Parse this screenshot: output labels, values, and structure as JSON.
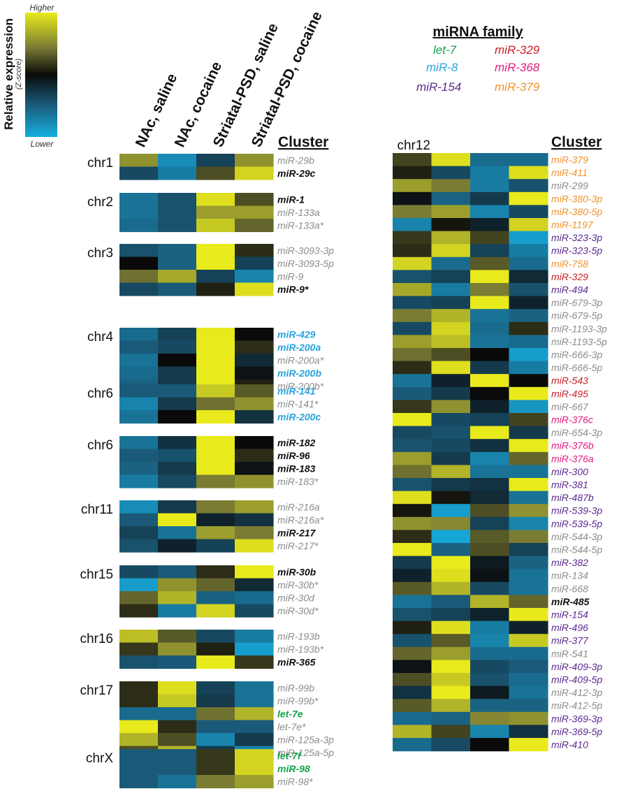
{
  "legend": {
    "title": "Relative expression",
    "subtitle": "(Z-score)",
    "higher_label": "Higher",
    "lower_label": "Lower",
    "color_stops": [
      "#e8ea1c",
      "#7a7c34",
      "#0a0a0a",
      "#1a5a78",
      "#16aee0"
    ]
  },
  "columns": [
    "NAc, saline",
    "NAc, cocaine",
    "Striatal-PSD, saline",
    "Striatal-PSD, cocaine"
  ],
  "cluster_label": "Cluster",
  "family_legend": {
    "title": "miRNA family",
    "items": [
      {
        "name": "let-7",
        "family": "let7"
      },
      {
        "name": "miR-329",
        "family": "m329"
      },
      {
        "name": "miR-8",
        "family": "m8"
      },
      {
        "name": "miR-368",
        "family": "m368"
      },
      {
        "name": "miR-154",
        "family": "m154"
      },
      {
        "name": "miR-379",
        "family": "m379"
      }
    ]
  },
  "family_colors": {
    "none": "#8c8c8c",
    "bold": "#111111",
    "let7": "#17a24a",
    "m8": "#2aa3dd",
    "m154": "#5a2a8e",
    "m329": "#cc2027",
    "m368": "#e5177f",
    "m379": "#f1932b"
  },
  "chart_data": {
    "type": "heatmap",
    "value_range": [
      -2,
      2
    ],
    "columns": [
      "NAc, saline",
      "NAc, cocaine",
      "Striatal-PSD, saline",
      "Striatal-PSD, cocaine"
    ],
    "groups": [
      {
        "chr": "chr1",
        "rows": [
          {
            "name": "miR-29b",
            "family": "none",
            "values": [
              1.2,
              -1.6,
              -0.7,
              1.2
            ]
          },
          {
            "name": "miR-29c",
            "family": "bold",
            "values": [
              -0.8,
              -1.4,
              0.6,
              1.8
            ]
          }
        ]
      },
      {
        "chr": "chr2",
        "rows": [
          {
            "name": "miR-1",
            "family": "bold",
            "values": [
              -1.3,
              -0.9,
              1.9,
              0.6
            ]
          },
          {
            "name": "miR-133a",
            "family": "none",
            "values": [
              -1.3,
              -0.9,
              1.3,
              1.3
            ]
          },
          {
            "name": "miR-133a*",
            "family": "none",
            "values": [
              -1.2,
              -0.9,
              1.7,
              0.8
            ]
          }
        ]
      },
      {
        "chr": "chr3",
        "rows": [
          {
            "name": "miR-3093-3p",
            "family": "none",
            "values": [
              -0.9,
              -1.1,
              2.0,
              0.3
            ]
          },
          {
            "name": "miR-3093-5p",
            "family": "none",
            "values": [
              0.0,
              -1.1,
              2.0,
              -0.7
            ]
          },
          {
            "name": "miR-9",
            "family": "none",
            "values": [
              0.9,
              1.4,
              -0.7,
              -1.5
            ]
          },
          {
            "name": "miR-9*",
            "family": "bold",
            "values": [
              -0.8,
              -1.0,
              0.2,
              1.9
            ]
          }
        ]
      },
      {
        "chr": "chr4",
        "rows": [
          {
            "name": "miR-429",
            "family": "m8",
            "values": [
              -1.2,
              -0.7,
              2.0,
              0.0
            ]
          },
          {
            "name": "miR-200a",
            "family": "m8",
            "values": [
              -1.0,
              -0.8,
              2.0,
              0.3
            ]
          },
          {
            "name": "miR-200a*",
            "family": "none",
            "values": [
              -1.3,
              0.0,
              2.0,
              -0.4
            ]
          },
          {
            "name": "miR-200b",
            "family": "m8",
            "values": [
              -1.2,
              -0.6,
              2.0,
              -0.1
            ]
          },
          {
            "name": "miR-200b*",
            "family": "none",
            "values": [
              -1.1,
              -0.6,
              2.0,
              0.2
            ]
          }
        ]
      },
      {
        "chr": "chr6",
        "rows": [
          {
            "name": "miR-141",
            "family": "m8",
            "values": [
              -1.0,
              -1.0,
              1.7,
              0.7
            ]
          },
          {
            "name": "miR-141*",
            "family": "none",
            "values": [
              -1.5,
              -0.6,
              0.9,
              1.2
            ]
          },
          {
            "name": "miR-200c",
            "family": "m8",
            "values": [
              -1.3,
              0.0,
              2.0,
              -0.5
            ]
          }
        ]
      },
      {
        "chr": "chr6",
        "rows": [
          {
            "name": "miR-182",
            "family": "bold",
            "values": [
              -1.3,
              -0.5,
              2.0,
              0.0
            ]
          },
          {
            "name": "miR-96",
            "family": "bold",
            "values": [
              -1.0,
              -0.9,
              2.0,
              0.3
            ]
          },
          {
            "name": "miR-183",
            "family": "bold",
            "values": [
              -1.1,
              -0.6,
              2.0,
              -0.1
            ]
          },
          {
            "name": "miR-183*",
            "family": "none",
            "values": [
              -1.4,
              -0.8,
              1.0,
              1.2
            ]
          }
        ]
      },
      {
        "chr": "chr11",
        "rows": [
          {
            "name": "miR-216a",
            "family": "none",
            "values": [
              -1.6,
              -0.6,
              1.0,
              1.3
            ]
          },
          {
            "name": "miR-216a*",
            "family": "none",
            "values": [
              -1.0,
              2.0,
              -0.3,
              -0.5
            ]
          },
          {
            "name": "miR-217",
            "family": "bold",
            "values": [
              -0.7,
              -1.3,
              1.3,
              1.0
            ]
          },
          {
            "name": "miR-217*",
            "family": "none",
            "values": [
              -0.9,
              -0.3,
              -0.7,
              1.9
            ]
          }
        ]
      },
      {
        "chr": "chr15",
        "rows": [
          {
            "name": "miR-30b",
            "family": "bold",
            "values": [
              -0.8,
              -1.0,
              0.3,
              2.0
            ]
          },
          {
            "name": "miR-30b*",
            "family": "none",
            "values": [
              -1.8,
              1.2,
              0.8,
              -0.4
            ]
          },
          {
            "name": "miR-30d",
            "family": "none",
            "values": [
              0.8,
              1.5,
              -1.1,
              -1.2
            ]
          },
          {
            "name": "miR-30d*",
            "family": "none",
            "values": [
              0.3,
              -1.4,
              1.8,
              -0.8
            ]
          }
        ]
      },
      {
        "chr": "chr16",
        "rows": [
          {
            "name": "miR-193b",
            "family": "none",
            "values": [
              1.6,
              0.7,
              -0.8,
              -1.4
            ]
          },
          {
            "name": "miR-193b*",
            "family": "none",
            "values": [
              0.4,
              1.2,
              0.2,
              -1.8
            ]
          },
          {
            "name": "miR-365",
            "family": "bold",
            "values": [
              -0.9,
              -1.0,
              2.0,
              0.4
            ]
          }
        ]
      },
      {
        "chr": "chr17",
        "rows": [
          {
            "name": "miR-99b",
            "family": "none",
            "values": [
              0.3,
              1.9,
              -0.7,
              -1.3
            ]
          },
          {
            "name": "miR-99b*",
            "family": "none",
            "values": [
              0.3,
              1.7,
              -0.6,
              -1.3
            ]
          },
          {
            "name": "let-7e",
            "family": "let7",
            "values": [
              -1.2,
              -1.2,
              0.9,
              1.5
            ]
          },
          {
            "name": "let-7e*",
            "family": "none",
            "values": [
              2.0,
              0.3,
              -1.0,
              -1.0
            ]
          },
          {
            "name": "miR-125a-3p",
            "family": "none",
            "values": [
              1.5,
              0.6,
              -1.5,
              -0.6
            ]
          },
          {
            "name": "miR-125a-5p",
            "family": "none",
            "values": [
              0.6,
              1.5,
              -0.6,
              -1.5
            ]
          }
        ]
      },
      {
        "chr": "chrX",
        "rows": [
          {
            "name": "let-7f",
            "family": "let7",
            "values": [
              -1.0,
              -1.0,
              0.4,
              1.8
            ]
          },
          {
            "name": "miR-98",
            "family": "let7",
            "values": [
              -1.0,
              -1.0,
              0.4,
              1.8
            ]
          },
          {
            "name": "miR-98*",
            "family": "none",
            "values": [
              -1.0,
              -1.3,
              1.0,
              1.3
            ]
          }
        ]
      },
      {
        "chr": "chr12",
        "rows": [
          {
            "name": "miR-379",
            "family": "m379",
            "values": [
              0.5,
              1.9,
              -1.2,
              -1.2
            ]
          },
          {
            "name": "miR-411",
            "family": "m379",
            "values": [
              0.2,
              -0.8,
              -1.4,
              1.9
            ]
          },
          {
            "name": "miR-299",
            "family": "none",
            "values": [
              1.3,
              1.0,
              -1.4,
              -0.9
            ]
          },
          {
            "name": "miR-380-3p",
            "family": "m379",
            "values": [
              -0.1,
              -1.1,
              -0.6,
              2.0
            ]
          },
          {
            "name": "miR-380-5p",
            "family": "m379",
            "values": [
              1.0,
              1.3,
              -1.5,
              -0.8
            ]
          },
          {
            "name": "miR-1197",
            "family": "m379",
            "values": [
              -1.5,
              0.1,
              -0.3,
              1.8
            ]
          },
          {
            "name": "miR-323-3p",
            "family": "m154",
            "values": [
              0.4,
              1.5,
              0.5,
              -1.8
            ]
          },
          {
            "name": "miR-323-5p",
            "family": "m154",
            "values": [
              0.3,
              1.8,
              -0.7,
              -1.4
            ]
          },
          {
            "name": "miR-758",
            "family": "m379",
            "values": [
              1.8,
              -1.2,
              0.7,
              -1.2
            ]
          },
          {
            "name": "miR-329",
            "family": "m329",
            "values": [
              -0.9,
              -0.7,
              2.0,
              -0.4
            ]
          },
          {
            "name": "miR-494",
            "family": "m154",
            "values": [
              1.4,
              -1.4,
              1.0,
              -0.9
            ]
          },
          {
            "name": "miR-679-3p",
            "family": "none",
            "values": [
              -0.8,
              -0.7,
              2.0,
              -0.3
            ]
          },
          {
            "name": "miR-679-5p",
            "family": "none",
            "values": [
              1.0,
              1.5,
              -1.3,
              -1.1
            ]
          },
          {
            "name": "miR-1193-3p",
            "family": "none",
            "values": [
              -0.8,
              1.8,
              -1.2,
              0.3
            ]
          },
          {
            "name": "miR-1193-5p",
            "family": "none",
            "values": [
              1.3,
              1.6,
              -1.3,
              -1.2
            ]
          },
          {
            "name": "miR-666-3p",
            "family": "none",
            "values": [
              0.9,
              0.6,
              0.0,
              -1.8
            ]
          },
          {
            "name": "miR-666-5p",
            "family": "none",
            "values": [
              0.3,
              1.9,
              -0.6,
              -1.4
            ]
          },
          {
            "name": "miR-543",
            "family": "m329",
            "values": [
              -1.3,
              -0.3,
              2.0,
              0.0
            ]
          },
          {
            "name": "miR-495",
            "family": "m329",
            "values": [
              -1.0,
              -0.6,
              0.0,
              2.0
            ]
          },
          {
            "name": "miR-667",
            "family": "none",
            "values": [
              0.4,
              1.2,
              -0.3,
              -1.7
            ]
          },
          {
            "name": "miR-376c",
            "family": "m368",
            "values": [
              2.0,
              -0.8,
              -0.7,
              0.5
            ]
          },
          {
            "name": "miR-654-3p",
            "family": "none",
            "values": [
              -0.8,
              -0.9,
              2.0,
              -0.6
            ]
          },
          {
            "name": "miR-376b",
            "family": "m368",
            "values": [
              -0.9,
              -0.8,
              -0.5,
              2.0
            ]
          },
          {
            "name": "miR-376a",
            "family": "m368",
            "values": [
              1.3,
              -0.6,
              -1.5,
              0.8
            ]
          },
          {
            "name": "miR-300",
            "family": "m154",
            "values": [
              0.9,
              1.5,
              -1.3,
              -1.3
            ]
          },
          {
            "name": "miR-381",
            "family": "m154",
            "values": [
              -0.9,
              -0.6,
              -0.5,
              2.0
            ]
          },
          {
            "name": "miR-487b",
            "family": "m154",
            "values": [
              1.9,
              0.1,
              -0.4,
              -1.3
            ]
          },
          {
            "name": "miR-539-3p",
            "family": "m154",
            "values": [
              0.1,
              -1.8,
              0.6,
              1.2
            ]
          },
          {
            "name": "miR-539-5p",
            "family": "m154",
            "values": [
              1.2,
              1.1,
              -0.7,
              -1.5
            ]
          },
          {
            "name": "miR-544-3p",
            "family": "none",
            "values": [
              0.3,
              -1.9,
              0.7,
              1.0
            ]
          },
          {
            "name": "miR-544-5p",
            "family": "none",
            "values": [
              2.0,
              -1.1,
              0.6,
              -0.7
            ]
          },
          {
            "name": "miR-382",
            "family": "m154",
            "values": [
              -0.6,
              2.0,
              -0.2,
              -1.1
            ]
          },
          {
            "name": "miR-134",
            "family": "none",
            "values": [
              -0.3,
              1.9,
              -0.1,
              -1.3
            ]
          },
          {
            "name": "miR-668",
            "family": "none",
            "values": [
              0.7,
              1.5,
              -0.8,
              -1.3
            ]
          },
          {
            "name": "miR-485",
            "family": "bold",
            "values": [
              -1.3,
              -1.0,
              1.5,
              0.8
            ]
          },
          {
            "name": "miR-154",
            "family": "m154",
            "values": [
              -0.9,
              -0.7,
              -0.3,
              2.0
            ]
          },
          {
            "name": "miR-496",
            "family": "m154",
            "values": [
              0.2,
              1.9,
              -1.4,
              -0.3
            ]
          },
          {
            "name": "miR-377",
            "family": "m154",
            "values": [
              -0.9,
              0.7,
              -1.5,
              1.7
            ]
          },
          {
            "name": "miR-541",
            "family": "none",
            "values": [
              0.8,
              1.3,
              -1.2,
              -1.2
            ]
          },
          {
            "name": "miR-409-3p",
            "family": "m154",
            "values": [
              -0.1,
              2.0,
              -0.8,
              -1.0
            ]
          },
          {
            "name": "miR-409-5p",
            "family": "m154",
            "values": [
              0.6,
              1.7,
              -0.9,
              -1.2
            ]
          },
          {
            "name": "miR-412-3p",
            "family": "none",
            "values": [
              -0.5,
              2.0,
              -0.2,
              -1.3
            ]
          },
          {
            "name": "miR-412-5p",
            "family": "none",
            "values": [
              0.7,
              1.5,
              -1.1,
              -1.1
            ]
          },
          {
            "name": "miR-369-3p",
            "family": "m154",
            "values": [
              -1.2,
              -1.1,
              1.1,
              1.2
            ]
          },
          {
            "name": "miR-369-5p",
            "family": "m154",
            "values": [
              1.5,
              0.5,
              -1.5,
              -0.5
            ]
          },
          {
            "name": "miR-410",
            "family": "m154",
            "values": [
              -1.2,
              -0.8,
              0.0,
              2.0
            ]
          }
        ]
      }
    ]
  }
}
